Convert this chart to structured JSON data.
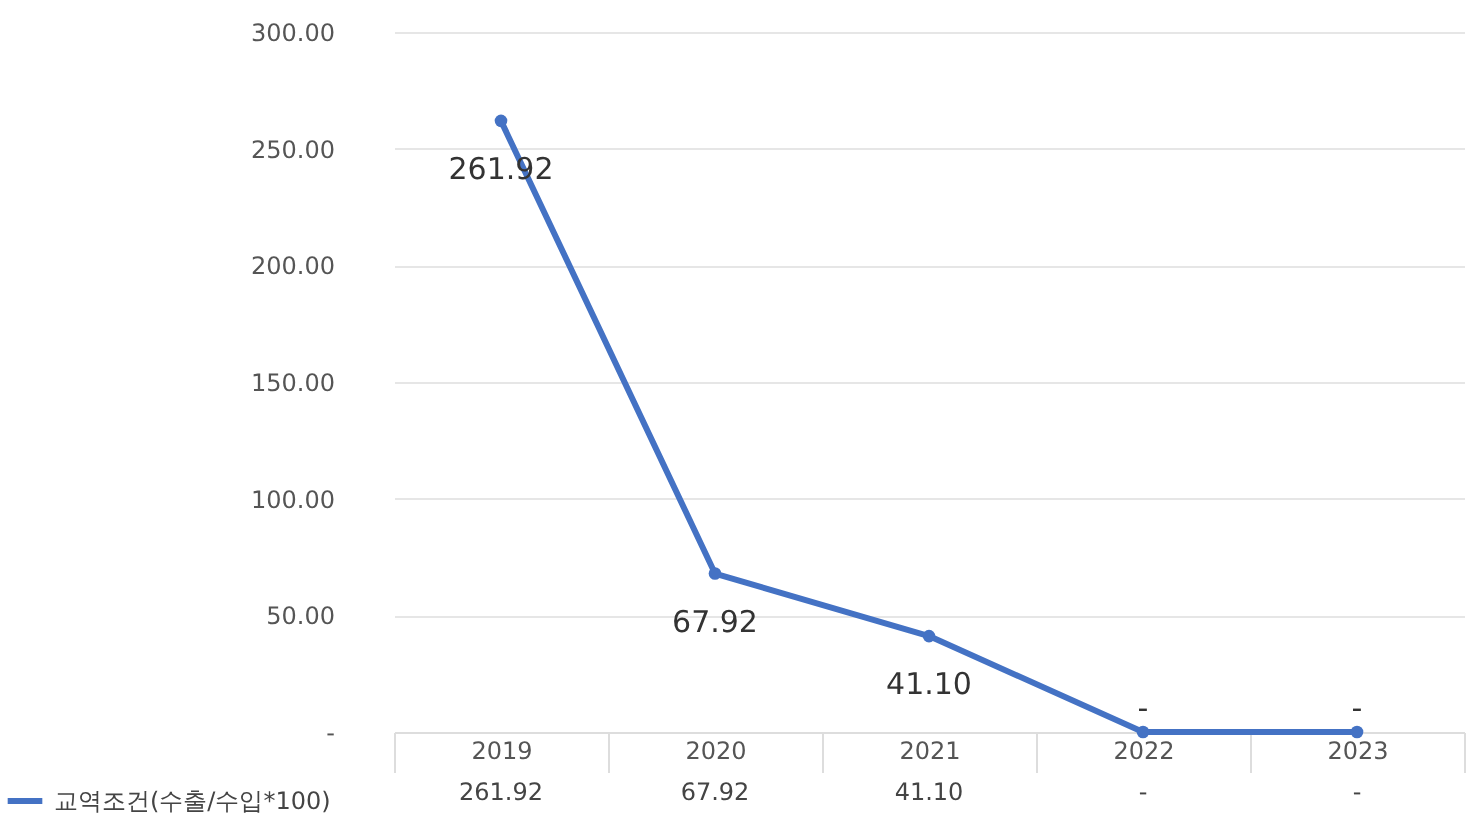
{
  "chart_data": {
    "type": "line",
    "categories": [
      "2019",
      "2020",
      "2021",
      "2022",
      "2023"
    ],
    "series": [
      {
        "name": "교역조건(수출/수입*100)",
        "color": "#4472c4",
        "values": [
          261.92,
          67.92,
          41.1,
          0,
          0
        ],
        "value_labels": [
          "261.92",
          "67.92",
          "41.10",
          "-",
          "-"
        ]
      }
    ],
    "ylim": [
      0,
      300
    ],
    "yticks": [
      {
        "value": 0,
        "label": "-"
      },
      {
        "value": 50,
        "label": "50.00"
      },
      {
        "value": 100,
        "label": "100.00"
      },
      {
        "value": 150,
        "label": "150.00"
      },
      {
        "value": 200,
        "label": "200.00"
      },
      {
        "value": 250,
        "label": "250.00"
      },
      {
        "value": 300,
        "label": "300.00"
      }
    ],
    "grid": "y",
    "legend": "bottom left",
    "marker": "circle",
    "line_style": "solid"
  }
}
